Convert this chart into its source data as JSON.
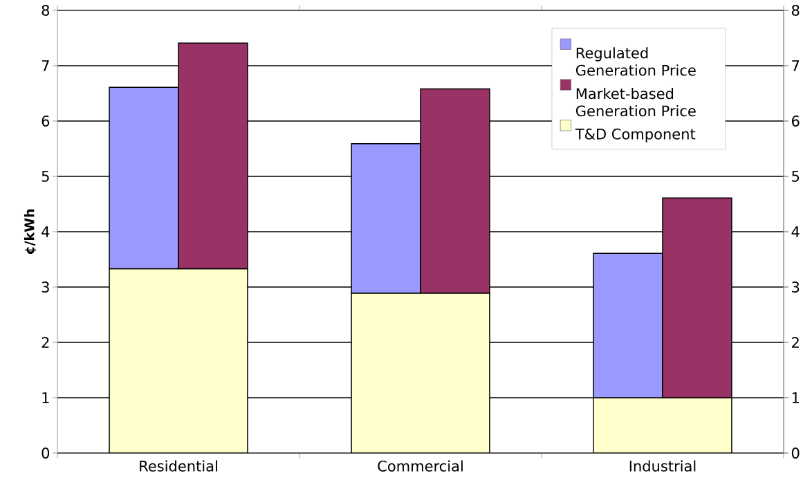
{
  "chart_data": {
    "type": "bar",
    "ylabel": "¢/kWh",
    "categories": [
      "Residential",
      "Commercial",
      "Industrial"
    ],
    "series": [
      {
        "name": "T&D Component",
        "color": "#ffffcc",
        "values": [
          3.33,
          2.89,
          1.0
        ]
      },
      {
        "name": "Regulated Generation Price",
        "color": "#9999ff",
        "values": [
          3.28,
          2.7,
          2.61
        ],
        "base": [
          3.33,
          2.89,
          1.0
        ]
      },
      {
        "name": "Market-based Generation Price",
        "color": "#993366",
        "values": [
          4.08,
          3.69,
          3.61
        ],
        "base": [
          3.33,
          2.89,
          1.0
        ]
      }
    ],
    "ylim": [
      0,
      8
    ],
    "yticks": [
      0,
      1,
      2,
      3,
      4,
      5,
      6,
      7,
      8
    ],
    "y2lim": [
      0,
      8
    ],
    "y2ticks": [
      0,
      1,
      2,
      3,
      4,
      5,
      6,
      7,
      8
    ],
    "grid": "y",
    "legend": "top right"
  }
}
